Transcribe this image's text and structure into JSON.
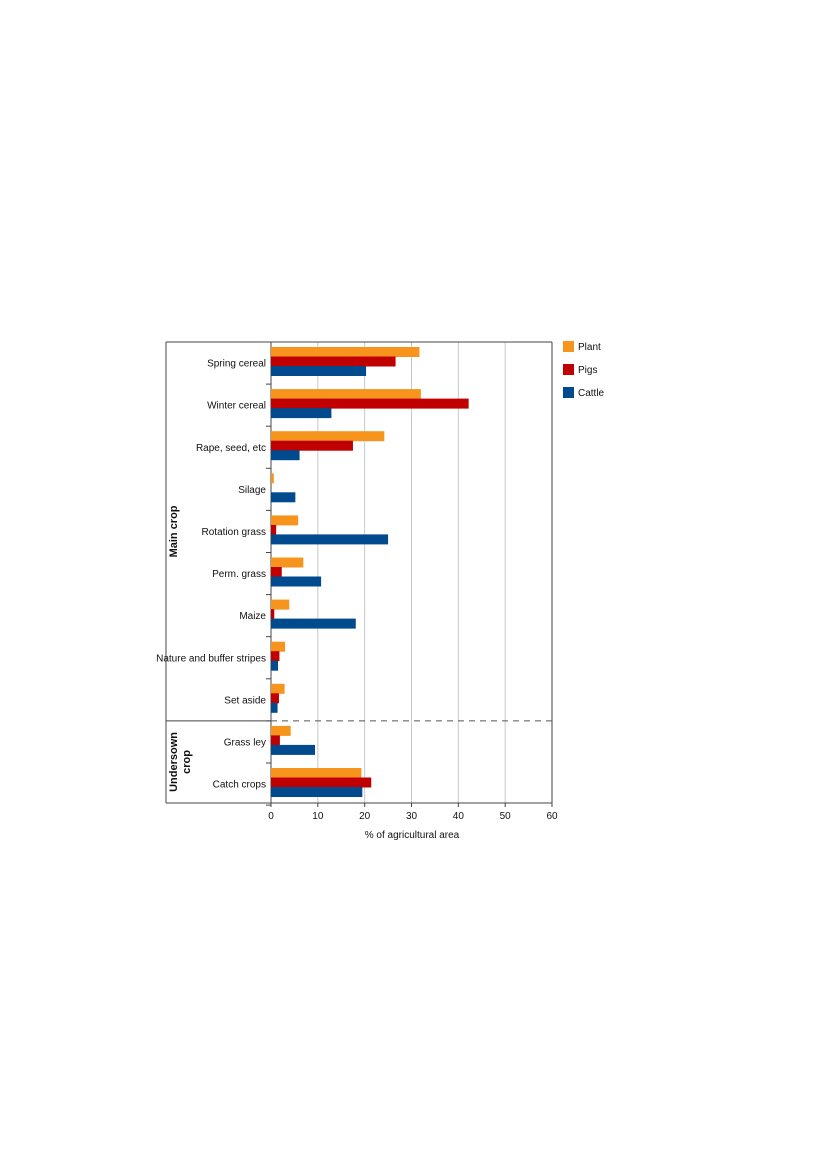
{
  "chart_data": {
    "type": "bar",
    "orientation": "horizontal",
    "title": "",
    "xlabel": "% of agricultural area",
    "ylabel": "",
    "xlim": [
      0,
      60
    ],
    "xticks": [
      0,
      10,
      20,
      30,
      40,
      50,
      60
    ],
    "grid": "vertical",
    "legend_position": "right",
    "categories": [
      "Spring cereal",
      "Winter cereal",
      "Rape, seed, etc",
      "Silage",
      "Rotation grass",
      "Perm. grass",
      "Maize",
      "Nature and buffer stripes",
      "Set aside",
      "Grass ley",
      "Catch crops"
    ],
    "groups": [
      {
        "label": "Main crop",
        "categories": [
          "Spring cereal",
          "Winter cereal",
          "Rape, seed, etc",
          "Silage",
          "Rotation grass",
          "Perm. grass",
          "Maize",
          "Nature and buffer stripes",
          "Set aside"
        ]
      },
      {
        "label": "Undersown crop",
        "label_lines": [
          "Undersown",
          "crop"
        ],
        "categories": [
          "Grass ley",
          "Catch crops"
        ]
      }
    ],
    "series": [
      {
        "name": "Plant",
        "color": "#f7941d",
        "values": [
          31.7,
          32.0,
          24.2,
          0.6,
          5.8,
          6.9,
          3.9,
          3.0,
          2.9,
          4.2,
          19.3
        ]
      },
      {
        "name": "Pigs",
        "color": "#c00000",
        "values": [
          26.6,
          42.2,
          17.5,
          0.0,
          1.1,
          2.3,
          0.7,
          1.8,
          1.7,
          1.9,
          21.4
        ]
      },
      {
        "name": "Cattle",
        "color": "#004a8d",
        "values": [
          20.3,
          12.9,
          6.1,
          5.2,
          25.0,
          10.7,
          18.1,
          1.5,
          1.4,
          9.4,
          19.5
        ]
      }
    ]
  }
}
